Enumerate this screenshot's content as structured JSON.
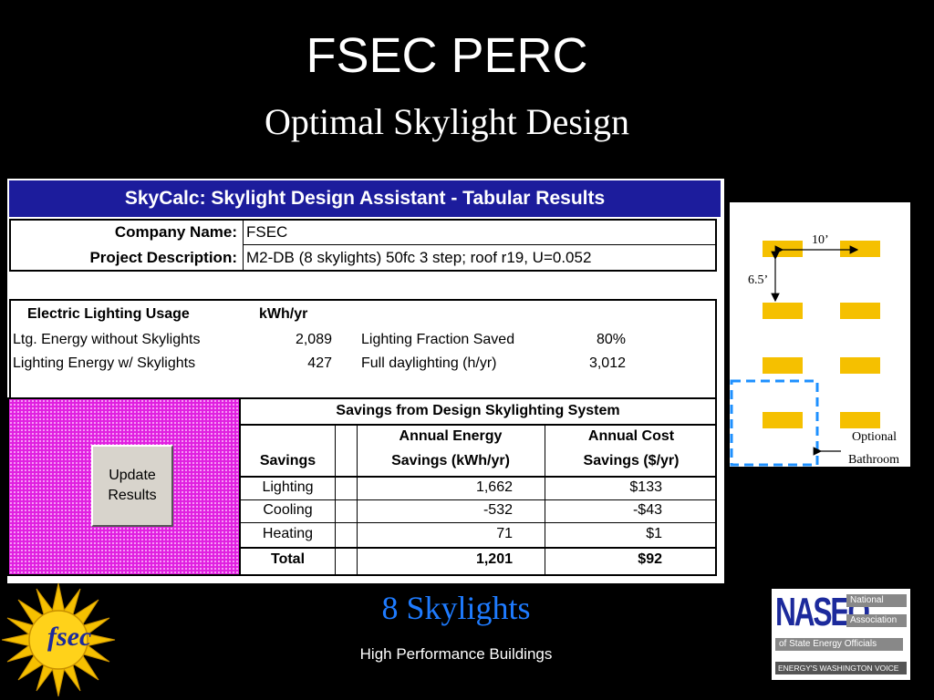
{
  "slide": {
    "title": "FSEC PERC",
    "subtitle": "Optimal Skylight Design",
    "skylight_count_label": "8 Skylights",
    "footer": "High Performance Buildings"
  },
  "sheet": {
    "header": "SkyCalc: Skylight Design Assistant - Tabular Results",
    "company_label": "Company Name:",
    "company_value": "FSEC",
    "project_label": "Project Description:",
    "project_value": "M2-DB (8 skylights) 50fc 3 step; roof r19, U=0.052",
    "usage": {
      "heading": "Electric Lighting Usage",
      "unit_heading": "kWh/yr",
      "rows": [
        {
          "label": "Ltg. Energy without Skylights",
          "value": "2,089",
          "label2": "Lighting Fraction Saved",
          "value2": "80%"
        },
        {
          "label": "Lighting Energy w/ Skylights",
          "value": "427",
          "label2": "Full daylighting (h/yr)",
          "value2": "3,012"
        }
      ]
    },
    "savings": {
      "heading": "Savings from Design Skylighting System",
      "col_savings": "Savings",
      "col_energy_1": "Annual Energy",
      "col_energy_2": "Savings (kWh/yr)",
      "col_cost_1": "Annual Cost",
      "col_cost_2": "Savings ($/yr)",
      "rows": [
        {
          "name": "Lighting",
          "energy": "1,662",
          "cost": "$133"
        },
        {
          "name": "Cooling",
          "energy": "-532",
          "cost": "-$43"
        },
        {
          "name": "Heating",
          "energy": "71",
          "cost": "$1"
        }
      ],
      "total": {
        "name": "Total",
        "energy": "1,201",
        "cost": "$92"
      }
    },
    "update_button": {
      "line1": "Update",
      "line2": "Results"
    }
  },
  "diagram": {
    "dim_width": "10’",
    "dim_height": "6.5’",
    "bathroom_label_1": "Optional",
    "bathroom_label_2": "Bathroom",
    "skylight_color": "#f5c000",
    "bathroom_outline_color": "#1e90ff"
  },
  "logos": {
    "fsec_text": "fsec",
    "naseo_text": "NASEO",
    "naseo_line1": "National",
    "naseo_line2": "Association",
    "naseo_line3": "of State Energy Officials",
    "naseo_tagline": "ENERGY'S WASHINGTON VOICE"
  },
  "colors": {
    "header_blue": "#1c1c9c",
    "magenta_panel": "#e020e0",
    "caption_blue": "#1e7bff"
  }
}
